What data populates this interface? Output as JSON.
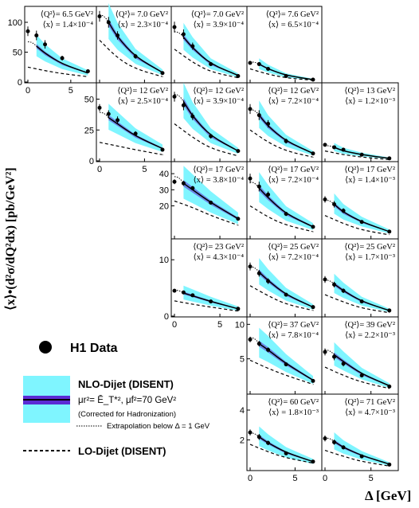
{
  "chart_data": {
    "type": "scatter",
    "ylabel": "⟨x⟩•(d²σ/dQ²dx) [pb/GeV²]",
    "xlabel": "Δ [GeV]",
    "x_ticks": [
      0,
      5
    ],
    "row_y": [
      {
        "ylim": [
          0,
          120
        ],
        "ticks": [
          0,
          50,
          100
        ]
      },
      {
        "ylim": [
          0,
          60
        ],
        "ticks": [
          0,
          25,
          50
        ]
      },
      {
        "ylim": [
          0,
          45
        ],
        "ticks": [
          20,
          30,
          40
        ]
      },
      {
        "ylim": [
          0,
          13
        ],
        "ticks": [
          0,
          10
        ]
      },
      {
        "ylim": [
          0,
          10.5
        ],
        "ticks": [
          5,
          10
        ]
      },
      {
        "ylim": [
          0,
          4.8
        ],
        "ticks": [
          2,
          4
        ]
      }
    ],
    "legend": {
      "data": "H1 Data",
      "nlo_title": "NLO-Dijet (DISENT)",
      "scale": "μr²= Ē_T*², μf²=70 GeV²",
      "hadr": "(Corrected for Hadronization)",
      "extrap": "Extrapolation below Δ = 1 GeV",
      "lo": "LO-Dijet (DISENT)"
    },
    "colors": {
      "band": "#7ff5ff",
      "inner": "#5b2bd4",
      "central": "#000000"
    },
    "panels": [
      {
        "row": 0,
        "col": 0,
        "q2": "⟨Q²⟩= 6.5 GeV²",
        "x": "⟨x⟩ = 1.4×10⁻⁴",
        "points": [
          [
            0,
            85,
            8
          ],
          [
            1,
            78,
            8
          ],
          [
            2,
            63,
            7
          ],
          [
            4,
            40,
            4
          ],
          [
            7,
            18,
            2
          ]
        ],
        "nlo": [
          [
            1,
            60
          ],
          [
            2,
            48
          ],
          [
            4,
            30
          ],
          [
            7,
            15
          ]
        ],
        "lo": [
          [
            0,
            25
          ],
          [
            2,
            19
          ],
          [
            4,
            14
          ],
          [
            7,
            9
          ]
        ]
      },
      {
        "row": 0,
        "col": 1,
        "q2": "⟨Q²⟩= 7.0 GeV²",
        "x": "⟨x⟩ = 2.3×10⁻⁴",
        "points": [
          [
            0,
            110,
            9
          ],
          [
            1,
            100,
            9
          ],
          [
            2,
            78,
            7
          ],
          [
            4,
            43,
            4
          ],
          [
            7,
            15,
            2
          ]
        ],
        "nlo": [
          [
            1,
            100
          ],
          [
            2,
            75
          ],
          [
            4,
            42
          ],
          [
            7,
            16
          ]
        ],
        "lo": [
          [
            0,
            70
          ],
          [
            2,
            40
          ],
          [
            4,
            22
          ],
          [
            7,
            9
          ]
        ]
      },
      {
        "row": 0,
        "col": 2,
        "q2": "⟨Q²⟩= 7.0 GeV²",
        "x": "⟨x⟩ = 3.9×10⁻⁴",
        "points": [
          [
            0,
            92,
            9
          ],
          [
            1,
            80,
            8
          ],
          [
            2,
            60,
            6
          ],
          [
            4,
            30,
            3
          ],
          [
            7,
            10,
            1
          ]
        ],
        "nlo": [
          [
            1,
            75
          ],
          [
            2,
            57
          ],
          [
            4,
            30
          ],
          [
            7,
            11
          ]
        ],
        "lo": [
          [
            0,
            55
          ],
          [
            2,
            33
          ],
          [
            4,
            17
          ],
          [
            7,
            7
          ]
        ]
      },
      {
        "row": 0,
        "col": 3,
        "q2": "⟨Q²⟩= 7.6 GeV²",
        "x": "⟨x⟩ = 6.5×10⁻⁴",
        "points": [
          [
            0,
            32,
            3
          ],
          [
            1,
            30,
            3
          ],
          [
            2,
            22,
            2
          ],
          [
            4,
            10,
            1
          ],
          [
            7,
            4,
            0.5
          ]
        ],
        "nlo": [
          [
            1,
            30
          ],
          [
            2,
            22
          ],
          [
            4,
            11
          ],
          [
            7,
            4
          ]
        ],
        "lo": [
          [
            0,
            22
          ],
          [
            2,
            13
          ],
          [
            4,
            7
          ],
          [
            7,
            3
          ]
        ]
      },
      {
        "row": 1,
        "col": 0,
        "q2": "⟨Q²⟩= 12 GeV²",
        "x": "⟨x⟩ = 2.5×10⁻⁴",
        "points": [
          [
            0,
            43,
            3
          ],
          [
            1,
            38,
            3
          ],
          [
            2,
            33,
            3
          ],
          [
            4,
            22,
            2
          ],
          [
            7,
            9,
            1
          ]
        ],
        "nlo": [
          [
            1,
            35
          ],
          [
            2,
            30
          ],
          [
            4,
            20
          ],
          [
            7,
            10
          ]
        ],
        "lo": [
          [
            0,
            15
          ],
          [
            2,
            12
          ],
          [
            4,
            9
          ],
          [
            7,
            5
          ]
        ]
      },
      {
        "row": 1,
        "col": 1,
        "q2": "⟨Q²⟩= 12 GeV²",
        "x": "⟨x⟩ = 3.9×10⁻⁴",
        "points": [
          [
            0,
            52,
            4
          ],
          [
            1,
            45,
            4
          ],
          [
            2,
            36,
            3
          ],
          [
            4,
            20,
            2
          ],
          [
            7,
            8,
            1
          ]
        ],
        "nlo": [
          [
            1,
            48
          ],
          [
            2,
            36
          ],
          [
            4,
            20
          ],
          [
            7,
            8
          ]
        ],
        "lo": [
          [
            0,
            30
          ],
          [
            2,
            19
          ],
          [
            4,
            10
          ],
          [
            7,
            4
          ]
        ]
      },
      {
        "row": 1,
        "col": 2,
        "q2": "⟨Q²⟩= 12 GeV²",
        "x": "⟨x⟩ = 7.2×10⁻⁴",
        "points": [
          [
            0,
            42,
            4
          ],
          [
            1,
            37,
            4
          ],
          [
            2,
            30,
            3
          ],
          [
            4,
            16,
            2
          ],
          [
            7,
            6,
            0.6
          ]
        ],
        "nlo": [
          [
            1,
            37
          ],
          [
            2,
            28
          ],
          [
            4,
            16
          ],
          [
            7,
            6
          ]
        ],
        "lo": [
          [
            0,
            25
          ],
          [
            2,
            15
          ],
          [
            4,
            8
          ],
          [
            7,
            3
          ]
        ]
      },
      {
        "row": 1,
        "col": 3,
        "q2": "⟨Q²⟩= 13 GeV²",
        "x": "⟨x⟩ = 1.2×10⁻³",
        "points": [
          [
            0,
            13,
            1.2
          ],
          [
            1,
            11,
            1
          ],
          [
            2,
            9,
            0.8
          ],
          [
            4,
            5,
            0.5
          ],
          [
            7,
            2,
            0.2
          ]
        ],
        "nlo": [
          [
            1,
            11
          ],
          [
            2,
            8
          ],
          [
            4,
            5
          ],
          [
            7,
            2
          ]
        ],
        "lo": [
          [
            0,
            8
          ],
          [
            2,
            5
          ],
          [
            4,
            3
          ],
          [
            7,
            1
          ]
        ]
      },
      {
        "row": 2,
        "col": 0,
        "q2": "⟨Q²⟩= 17 GeV²",
        "x": "⟨x⟩ = 3.8×10⁻⁴",
        "points": [
          [
            0,
            35,
            1.5
          ],
          [
            1,
            34,
            1.5
          ],
          [
            2,
            31,
            1.3
          ],
          [
            4,
            22,
            1
          ],
          [
            7,
            12,
            0.6
          ]
        ],
        "nlo": [
          [
            1,
            34
          ],
          [
            2,
            30
          ],
          [
            4,
            22
          ],
          [
            7,
            12
          ]
        ],
        "lo": [
          [
            0,
            23
          ],
          [
            2,
            19
          ],
          [
            4,
            14
          ],
          [
            7,
            8
          ]
        ]
      },
      {
        "row": 2,
        "col": 1,
        "q2": "⟨Q²⟩= 17 GeV²",
        "x": "⟨x⟩ = 7.2×10⁻⁴",
        "points": [
          [
            0,
            37,
            3
          ],
          [
            1,
            32,
            3
          ],
          [
            2,
            27,
            2
          ],
          [
            4,
            15,
            1.3
          ],
          [
            7,
            7,
            0.6
          ]
        ],
        "nlo": [
          [
            1,
            31
          ],
          [
            2,
            25
          ],
          [
            4,
            15
          ],
          [
            7,
            7
          ]
        ],
        "lo": [
          [
            0,
            20
          ],
          [
            2,
            13
          ],
          [
            4,
            8
          ],
          [
            7,
            4
          ]
        ]
      },
      {
        "row": 2,
        "col": 2,
        "q2": "⟨Q²⟩= 17 GeV²",
        "x": "⟨x⟩ = 1.4×10⁻³",
        "points": [
          [
            0,
            24,
            2
          ],
          [
            1,
            21,
            2
          ],
          [
            2,
            17,
            1.5
          ],
          [
            4,
            10,
            1
          ],
          [
            7,
            4,
            0.4
          ]
        ],
        "nlo": [
          [
            1,
            21
          ],
          [
            2,
            16
          ],
          [
            4,
            10
          ],
          [
            7,
            4
          ]
        ],
        "lo": [
          [
            0,
            14
          ],
          [
            2,
            9
          ],
          [
            4,
            5
          ],
          [
            7,
            2
          ]
        ]
      },
      {
        "row": 3,
        "col": 0,
        "q2": "⟨Q²⟩= 23 GeV²",
        "x": "⟨x⟩ = 4.3×10⁻⁴",
        "points": [
          [
            0,
            4.5,
            0.3
          ],
          [
            1,
            4.2,
            0.3
          ],
          [
            2,
            3.7,
            0.3
          ],
          [
            4,
            2.6,
            0.2
          ],
          [
            7,
            1.3,
            0.1
          ]
        ],
        "nlo": [
          [
            1,
            4.1
          ],
          [
            2,
            3.6
          ],
          [
            4,
            2.6
          ],
          [
            7,
            1.3
          ]
        ],
        "lo": [
          [
            0,
            2.7
          ],
          [
            2,
            2.1
          ],
          [
            4,
            1.6
          ],
          [
            7,
            0.9
          ]
        ]
      },
      {
        "row": 3,
        "col": 1,
        "q2": "⟨Q²⟩= 25 GeV²",
        "x": "⟨x⟩ = 7.2×10⁻⁴",
        "points": [
          [
            0,
            8.8,
            0.7
          ],
          [
            1,
            7.6,
            0.6
          ],
          [
            2,
            6.2,
            0.5
          ],
          [
            4,
            3.8,
            0.3
          ],
          [
            7,
            1.6,
            0.15
          ]
        ],
        "nlo": [
          [
            1,
            7.8
          ],
          [
            2,
            6.3
          ],
          [
            4,
            3.8
          ],
          [
            7,
            1.6
          ]
        ],
        "lo": [
          [
            0,
            5.4
          ],
          [
            2,
            3.6
          ],
          [
            4,
            2.1
          ],
          [
            7,
            1
          ]
        ]
      },
      {
        "row": 3,
        "col": 2,
        "q2": "⟨Q²⟩= 25 GeV²",
        "x": "⟨x⟩ = 1.7×10⁻³",
        "points": [
          [
            0,
            6.5,
            0.6
          ],
          [
            1,
            5.6,
            0.5
          ],
          [
            2,
            4.5,
            0.4
          ],
          [
            4,
            2.6,
            0.25
          ],
          [
            7,
            1,
            0.1
          ]
        ],
        "nlo": [
          [
            1,
            5.7
          ],
          [
            2,
            4.5
          ],
          [
            4,
            2.6
          ],
          [
            7,
            1
          ]
        ],
        "lo": [
          [
            0,
            3.8
          ],
          [
            2,
            2.5
          ],
          [
            4,
            1.4
          ],
          [
            7,
            0.6
          ]
        ]
      },
      {
        "row": 4,
        "col": 0,
        "q2": "⟨Q²⟩= 37 GeV²",
        "x": "⟨x⟩ = 7.8×10⁻⁴",
        "points": [
          [
            0,
            7.8,
            0.4
          ],
          [
            1,
            7.2,
            0.4
          ],
          [
            2,
            6.3,
            0.35
          ],
          [
            4,
            4.2,
            0.25
          ],
          [
            7,
            1.8,
            0.1
          ]
        ],
        "nlo": [
          [
            1,
            7.2
          ],
          [
            2,
            6.3
          ],
          [
            4,
            4.3
          ],
          [
            7,
            1.9
          ]
        ],
        "lo": [
          [
            0,
            4.8
          ],
          [
            2,
            3.6
          ],
          [
            4,
            2.6
          ],
          [
            7,
            1.3
          ]
        ]
      },
      {
        "row": 4,
        "col": 1,
        "q2": "⟨Q²⟩= 39 GeV²",
        "x": "⟨x⟩ = 2.2×10⁻³",
        "points": [
          [
            0,
            6,
            0.5
          ],
          [
            1,
            5.3,
            0.5
          ],
          [
            2,
            4.3,
            0.4
          ],
          [
            4,
            2.6,
            0.25
          ],
          [
            7,
            1,
            0.1
          ]
        ],
        "nlo": [
          [
            1,
            5.6
          ],
          [
            2,
            4.6
          ],
          [
            4,
            2.8
          ],
          [
            7,
            1.1
          ]
        ],
        "lo": [
          [
            0,
            3.8
          ],
          [
            2,
            2.6
          ],
          [
            4,
            1.6
          ],
          [
            7,
            0.7
          ]
        ]
      },
      {
        "row": 5,
        "col": 0,
        "q2": "⟨Q²⟩= 60 GeV²",
        "x": "⟨x⟩ = 1.8×10⁻³",
        "points": [
          [
            0,
            2.5,
            0.2
          ],
          [
            1,
            2.2,
            0.2
          ],
          [
            2,
            1.8,
            0.15
          ],
          [
            4,
            1.1,
            0.1
          ],
          [
            7,
            0.55,
            0.05
          ]
        ],
        "nlo": [
          [
            1,
            2.2
          ],
          [
            2,
            1.8
          ],
          [
            4,
            1.15
          ],
          [
            7,
            0.55
          ]
        ],
        "lo": [
          [
            0,
            1.7
          ],
          [
            2,
            1.2
          ],
          [
            4,
            0.8
          ],
          [
            7,
            0.45
          ]
        ]
      },
      {
        "row": 5,
        "col": 1,
        "q2": "⟨Q²⟩= 71 GeV²",
        "x": "⟨x⟩ = 4.7×10⁻³",
        "points": [
          [
            0,
            2.1,
            0.2
          ],
          [
            1,
            1.85,
            0.17
          ],
          [
            2,
            1.5,
            0.14
          ],
          [
            4,
            0.9,
            0.08
          ],
          [
            7,
            0.35,
            0.04
          ]
        ],
        "nlo": [
          [
            1,
            1.9
          ],
          [
            2,
            1.5
          ],
          [
            4,
            0.95
          ],
          [
            7,
            0.38
          ]
        ],
        "lo": [
          [
            0,
            1.3
          ],
          [
            2,
            0.9
          ],
          [
            4,
            0.55
          ],
          [
            7,
            0.25
          ]
        ]
      }
    ]
  }
}
